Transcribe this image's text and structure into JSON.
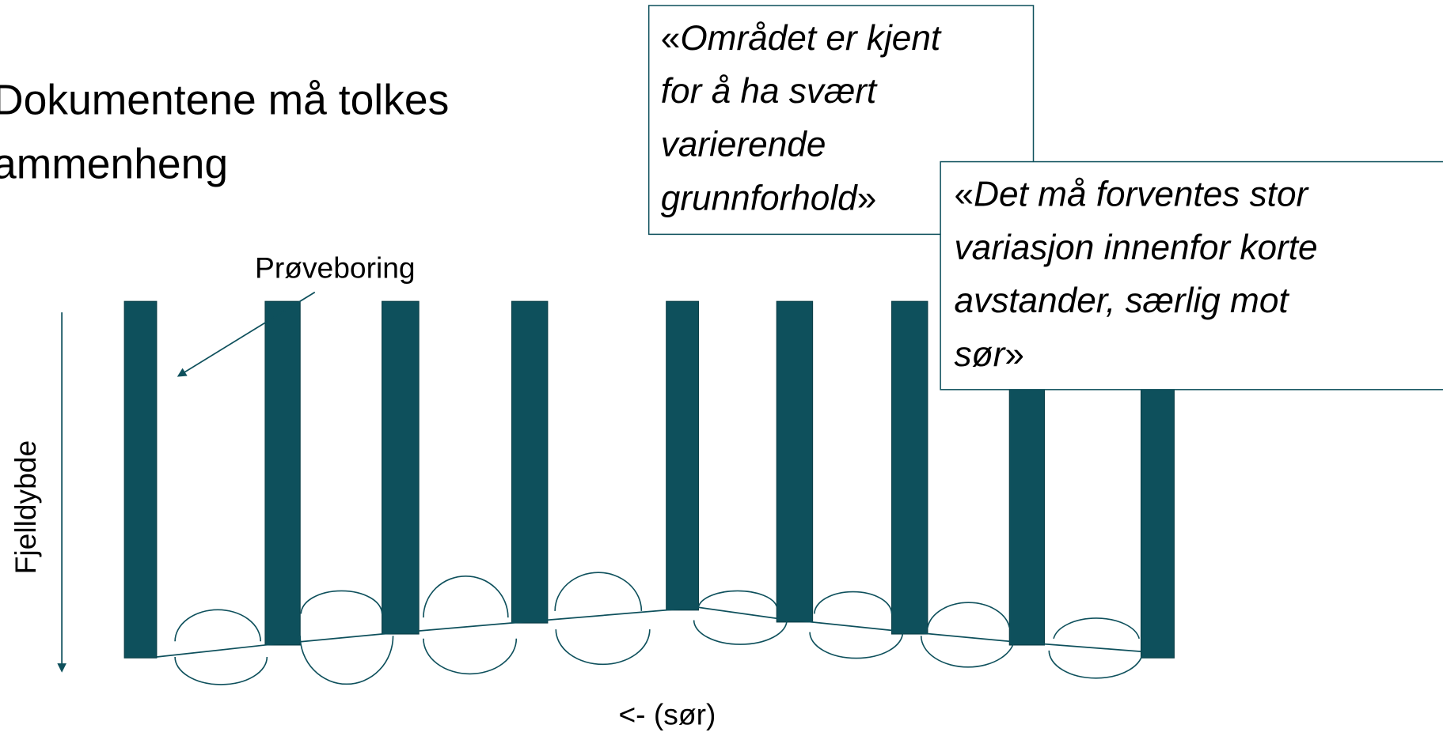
{
  "title": {
    "lines": [
      "Dokumentene må tolkes",
      "ammenheng"
    ]
  },
  "quotes": [
    {
      "open": "«",
      "lines": [
        "Området er kjent",
        "for å ha svært",
        "varierende",
        "grunnforhold"
      ],
      "close": "»"
    },
    {
      "open": "«",
      "lines": [
        "Det må forventes stor",
        "variasjon innenfor korte",
        "avstander, særlig mot",
        "sør"
      ],
      "close": "»"
    }
  ],
  "labels": {
    "sample": "Prøveboring",
    "depth_axis": "Fjelldybde",
    "direction": "<- (sør)"
  }
}
